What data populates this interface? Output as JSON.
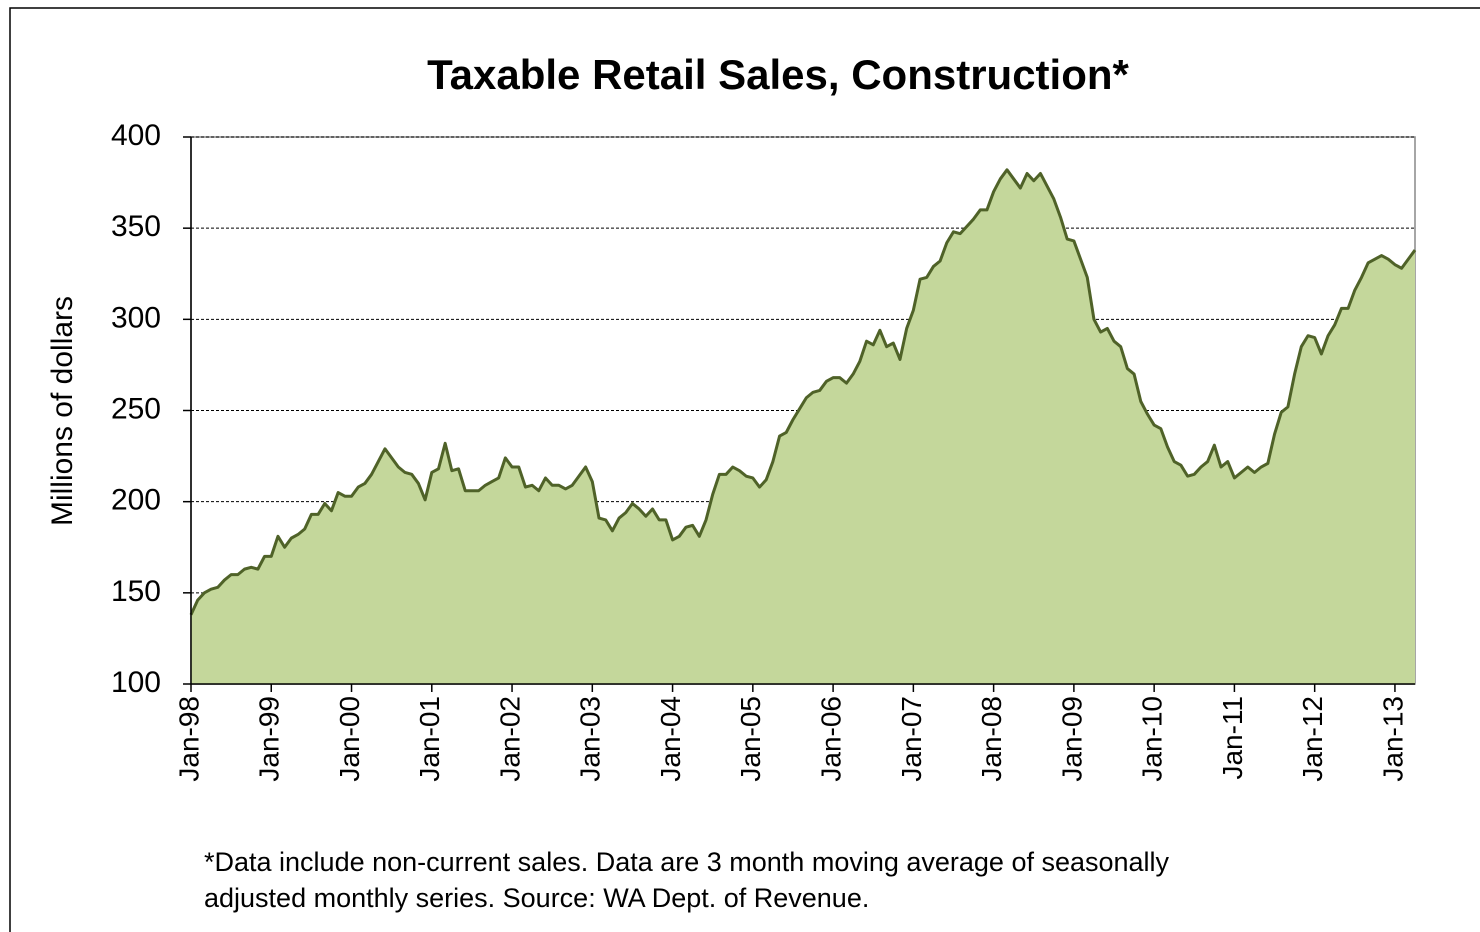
{
  "chart_data": {
    "type": "area",
    "title": "Taxable Retail Sales, Construction*",
    "y_axis_label": "Millions of dollars",
    "notes": [
      "*Data include non-current sales.  Data are 3 month moving average of  seasonally",
      "adjusted monthly series.  Source: WA Dept. of Revenue."
    ],
    "categories": [
      "Jan-98",
      null,
      null,
      null,
      null,
      null,
      null,
      null,
      null,
      null,
      null,
      null,
      "Jan-99",
      null,
      null,
      null,
      null,
      null,
      null,
      null,
      null,
      null,
      null,
      null,
      "Jan-00",
      null,
      null,
      null,
      null,
      null,
      null,
      null,
      null,
      null,
      null,
      null,
      "Jan-01",
      null,
      null,
      null,
      null,
      null,
      null,
      null,
      null,
      null,
      null,
      null,
      "Jan-02",
      null,
      null,
      null,
      null,
      null,
      null,
      null,
      null,
      null,
      null,
      null,
      "Jan-03",
      null,
      null,
      null,
      null,
      null,
      null,
      null,
      null,
      null,
      null,
      null,
      "Jan-04",
      null,
      null,
      null,
      null,
      null,
      null,
      null,
      null,
      null,
      null,
      null,
      "Jan-05",
      null,
      null,
      null,
      null,
      null,
      null,
      null,
      null,
      null,
      null,
      null,
      "Jan-06",
      null,
      null,
      null,
      null,
      null,
      null,
      null,
      null,
      null,
      null,
      null,
      "Jan-07",
      null,
      null,
      null,
      null,
      null,
      null,
      null,
      null,
      null,
      null,
      null,
      "Jan-08",
      null,
      null,
      null,
      null,
      null,
      null,
      null,
      null,
      null,
      null,
      null,
      "Jan-09",
      null,
      null,
      null,
      null,
      null,
      null,
      null,
      null,
      null,
      null,
      null,
      "Jan-10",
      null,
      null,
      null,
      null,
      null,
      null,
      null,
      null,
      null,
      null,
      null,
      "Jan-11",
      null,
      null,
      null,
      null,
      null,
      null,
      null,
      null,
      null,
      null,
      null,
      "Jan-12",
      null,
      null,
      null,
      null,
      null,
      null,
      null,
      null,
      null,
      null,
      null,
      "Jan-13",
      null,
      null,
      null
    ],
    "values": [
      138,
      146,
      150,
      152,
      153,
      157,
      160,
      160,
      163,
      164,
      163,
      170,
      170,
      181,
      175,
      180,
      182,
      185,
      193,
      193,
      199,
      195,
      205,
      203,
      203,
      208,
      210,
      215,
      222,
      229,
      224,
      219,
      216,
      215,
      210,
      201,
      216,
      218,
      232,
      217,
      218,
      206,
      206,
      206,
      209,
      211,
      213,
      224,
      219,
      219,
      208,
      209,
      206,
      213,
      209,
      209,
      207,
      209,
      214,
      219,
      211,
      191,
      190,
      184,
      191,
      194,
      199,
      196,
      192,
      196,
      190,
      190,
      179,
      181,
      186,
      187,
      181,
      190,
      204,
      215,
      215,
      219,
      217,
      214,
      213,
      208,
      212,
      222,
      236,
      238,
      245,
      251,
      257,
      260,
      261,
      266,
      268,
      268,
      265,
      270,
      277,
      288,
      286,
      294,
      285,
      287,
      278,
      295,
      305,
      322,
      323,
      329,
      332,
      342,
      348,
      347,
      351,
      355,
      360,
      360,
      370,
      377,
      382,
      377,
      372,
      380,
      376,
      380,
      373,
      366,
      356,
      344,
      343,
      333,
      323,
      300,
      293,
      295,
      288,
      285,
      273,
      270,
      255,
      248,
      242,
      240,
      230,
      222,
      220,
      214,
      215,
      219,
      222,
      231,
      219,
      222,
      213,
      216,
      219,
      216,
      219,
      221,
      237,
      249,
      252,
      270,
      285,
      291,
      290,
      281,
      291,
      297,
      306,
      306,
      316,
      323,
      331,
      333,
      335,
      333,
      330,
      328,
      333,
      338
    ],
    "color": "#c4d79b",
    "line_color": "#4f6228",
    "ylim": [
      100,
      400
    ],
    "yticks": [
      100,
      150,
      200,
      250,
      300,
      350,
      400
    ],
    "grid": true
  }
}
